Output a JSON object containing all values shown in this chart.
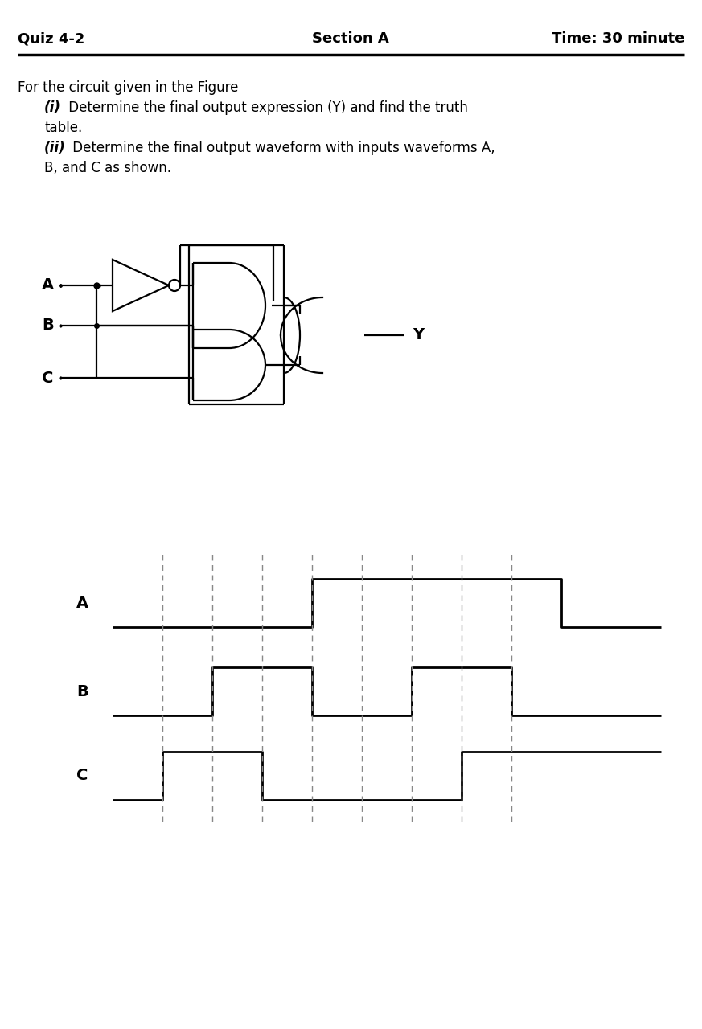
{
  "header_left": "Quiz 4-2",
  "header_center": "Section A",
  "header_right": "Time: 30 minute",
  "text_line1": "For the circuit given in the Figure",
  "text_i_label": "(i)",
  "text_i_rest": " Determine the final output expression (Y) and find the truth",
  "text_i_cont": "table.",
  "text_ii_label": "(ii)",
  "text_ii_rest": " Determine the final output waveform with inputs waveforms A,",
  "text_ii_cont": "B, and C as shown.",
  "bg_color": "#ffffff",
  "signal_A": [
    0,
    0,
    0,
    0,
    1,
    1,
    1,
    1,
    1,
    0,
    0
  ],
  "signal_B": [
    0,
    0,
    1,
    1,
    0,
    0,
    1,
    1,
    0,
    0,
    0
  ],
  "signal_C": [
    0,
    1,
    1,
    0,
    0,
    0,
    0,
    1,
    1,
    1,
    1
  ],
  "dashed_positions": [
    1,
    2,
    3,
    4,
    5,
    6,
    7,
    8
  ]
}
